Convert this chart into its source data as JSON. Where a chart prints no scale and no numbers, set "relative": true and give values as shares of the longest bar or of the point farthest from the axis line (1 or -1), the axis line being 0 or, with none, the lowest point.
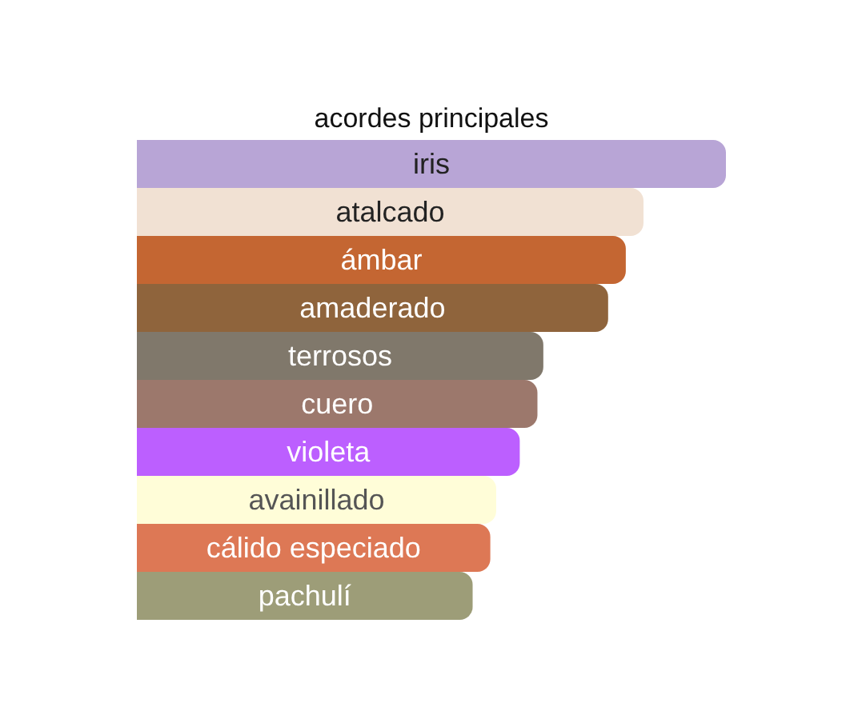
{
  "chart_data": {
    "type": "bar",
    "orientation": "horizontal",
    "relative": true,
    "title": "acordes principales",
    "categories": [
      "iris",
      "atalcado",
      "ámbar",
      "amaderado",
      "terrosos",
      "cuero",
      "violeta",
      "avainillado",
      "cálido especiado",
      "pachulí"
    ],
    "values": [
      1,
      0.86,
      0.83,
      0.8,
      0.69,
      0.68,
      0.65,
      0.61,
      0.6,
      0.57
    ],
    "colors": [
      "#b8a5d6",
      "#f1e1d3",
      "#c46632",
      "#8f643c",
      "#80786b",
      "#9c786c",
      "#bc5fff",
      "#fffdd8",
      "#dd7855",
      "#9d9d78"
    ],
    "tick_labels": false
  }
}
